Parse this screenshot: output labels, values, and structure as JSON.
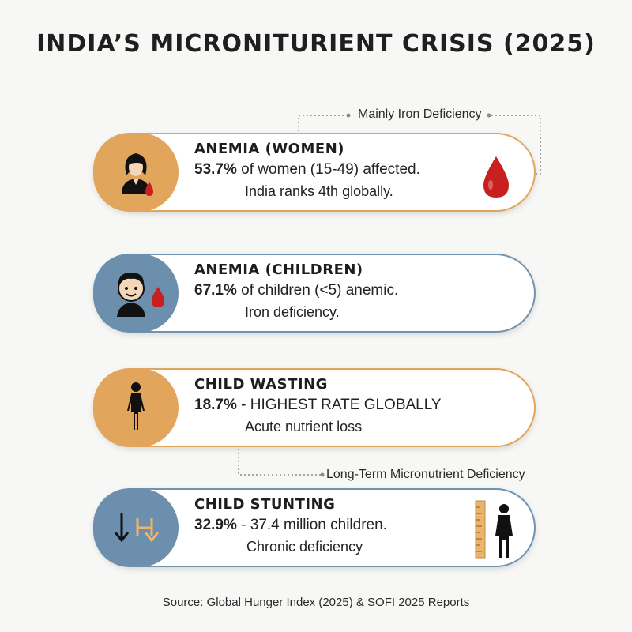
{
  "title": "INDIA’S MICRONITURIENT CRISIS (2025)",
  "annotations": {
    "top": "Mainly Iron Deficiency",
    "middle": "Long-Term Micronutrient Deficiency"
  },
  "cards": [
    {
      "heading": "ANEMIA (WOMEN)",
      "stat": "53.7%",
      "detail": " of women (15-49) affected.",
      "note": "India ranks 4th globally.",
      "icon": "woman-icon",
      "accent": "#e2a55c"
    },
    {
      "heading": "ANEMIA (CHILDREN)",
      "stat": "67.1%",
      "detail": " of children (<5) anemic.",
      "note": "Iron deficiency.",
      "icon": "child-face-icon",
      "accent": "#6c8fae"
    },
    {
      "heading": "CHILD WASTING",
      "stat": "18.7%",
      "detail": " - HIGHEST RATE GLOBALLY",
      "note": "Acute nutrient loss",
      "icon": "thin-child-icon",
      "accent": "#e2a55c"
    },
    {
      "heading": "CHILD STUNTING",
      "stat": "32.9%",
      "detail": " - 37.4 million children.",
      "note": "Chronic deficiency",
      "icon": "height-arrows-icon",
      "accent": "#6c8fae"
    }
  ],
  "colors": {
    "orange": "#e2a55c",
    "blue": "#6c8fae",
    "blood": "#c8201f"
  },
  "source": "Source: Global Hunger Index (2025) & SOFI 2025 Reports"
}
